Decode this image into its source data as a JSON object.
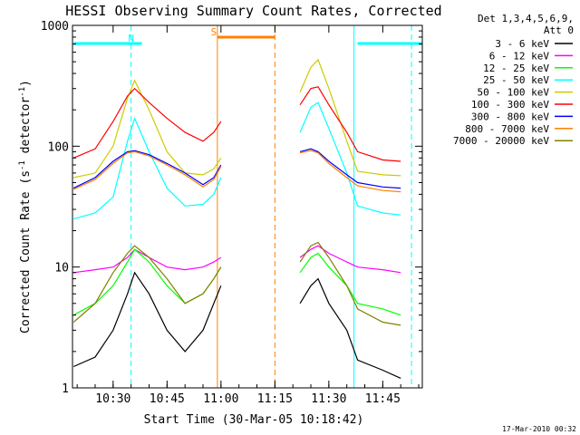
{
  "chart_data": {
    "type": "line",
    "title": "HESSI Observing Summary Count Rates, Corrected",
    "xlabel": "Start Time (30-Mar-05 10:18:42)",
    "ylabel": "Corrected Count Rate (s",
    "ylabel_sup1": "-1",
    "ylabel_mid": " detector",
    "ylabel_sup2": "-1",
    "ylabel_end": ")",
    "yscale": "log",
    "ylim": [
      1,
      1000
    ],
    "xlim": [
      "10:18:42",
      "11:56:00"
    ],
    "x_ticks": [
      "10:30",
      "10:45",
      "11:00",
      "11:15",
      "11:30",
      "11:45"
    ],
    "y_ticks": [
      "1",
      "10",
      "100",
      "1000"
    ],
    "legend_header": [
      "Det 1,3,4,5,6,9,",
      "Att 0"
    ],
    "legend_placement": "right",
    "footer_date": "17-Mar-2010 00:32",
    "series": [
      {
        "name": "3 - 6 keV",
        "color": "#000000",
        "x": [
          "10:19",
          "10:25",
          "10:30",
          "10:34",
          "10:36",
          "10:40",
          "10:45",
          "10:50",
          "10:55",
          "10:58",
          "11:00",
          "11:22",
          "11:25",
          "11:27",
          "11:30",
          "11:35",
          "11:38",
          "11:45",
          "11:50"
        ],
        "values": [
          1.5,
          1.8,
          3,
          6,
          9,
          6,
          3,
          2,
          3,
          5,
          7,
          5,
          7,
          8,
          5,
          3,
          1.7,
          1.4,
          1.2
        ]
      },
      {
        "name": "6 - 12 keV",
        "color": "#ff00ff",
        "x": [
          "10:19",
          "10:25",
          "10:30",
          "10:34",
          "10:36",
          "10:40",
          "10:45",
          "10:50",
          "10:55",
          "10:58",
          "11:00",
          "11:22",
          "11:25",
          "11:27",
          "11:30",
          "11:35",
          "11:38",
          "11:45",
          "11:50"
        ],
        "values": [
          9,
          9.5,
          10,
          12,
          14,
          12,
          10,
          9.5,
          10,
          11,
          12,
          12,
          14,
          15,
          13,
          11,
          10,
          9.5,
          9
        ]
      },
      {
        "name": "12 - 25 keV",
        "color": "#00ff00",
        "x": [
          "10:19",
          "10:25",
          "10:30",
          "10:34",
          "10:36",
          "10:40",
          "10:45",
          "10:50",
          "10:55",
          "10:58",
          "11:00",
          "11:22",
          "11:25",
          "11:27",
          "11:30",
          "11:35",
          "11:38",
          "11:45",
          "11:50"
        ],
        "values": [
          4,
          5,
          7,
          11,
          14,
          11,
          7,
          5,
          6,
          8,
          10,
          9,
          12,
          13,
          10,
          7,
          5,
          4.5,
          4
        ]
      },
      {
        "name": "25 - 50 keV",
        "color": "#00ffff",
        "x": [
          "10:19",
          "10:25",
          "10:30",
          "10:34",
          "10:36",
          "10:40",
          "10:45",
          "10:50",
          "10:55",
          "10:58",
          "11:00",
          "11:22",
          "11:25",
          "11:27",
          "11:30",
          "11:35",
          "11:38",
          "11:45",
          "11:50"
        ],
        "values": [
          25,
          28,
          38,
          110,
          170,
          90,
          45,
          32,
          33,
          40,
          55,
          130,
          210,
          230,
          140,
          60,
          32,
          28,
          27
        ]
      },
      {
        "name": "50 - 100 keV",
        "color": "#cccc00",
        "x": [
          "10:19",
          "10:25",
          "10:30",
          "10:34",
          "10:36",
          "10:40",
          "10:45",
          "10:50",
          "10:55",
          "10:58",
          "11:00",
          "11:22",
          "11:25",
          "11:27",
          "11:30",
          "11:35",
          "11:38",
          "11:45",
          "11:50"
        ],
        "values": [
          55,
          60,
          100,
          250,
          350,
          200,
          90,
          60,
          58,
          65,
          80,
          280,
          450,
          520,
          300,
          110,
          62,
          58,
          57
        ]
      },
      {
        "name": "100 - 300 keV",
        "color": "#ff0000",
        "x": [
          "10:19",
          "10:25",
          "10:30",
          "10:34",
          "10:36",
          "10:40",
          "10:45",
          "10:50",
          "10:55",
          "10:58",
          "11:00",
          "11:22",
          "11:25",
          "11:27",
          "11:30",
          "11:35",
          "11:38",
          "11:45",
          "11:50"
        ],
        "values": [
          80,
          95,
          160,
          260,
          300,
          230,
          170,
          130,
          110,
          130,
          160,
          220,
          300,
          310,
          220,
          130,
          90,
          77,
          75
        ]
      },
      {
        "name": "300 - 800 keV",
        "color": "#0000ff",
        "x": [
          "10:19",
          "10:25",
          "10:30",
          "10:34",
          "10:36",
          "10:40",
          "10:45",
          "10:50",
          "10:55",
          "10:58",
          "11:00",
          "11:22",
          "11:25",
          "11:27",
          "11:30",
          "11:35",
          "11:38",
          "11:45",
          "11:50"
        ],
        "values": [
          45,
          55,
          75,
          90,
          92,
          85,
          72,
          60,
          48,
          55,
          70,
          90,
          95,
          90,
          75,
          58,
          50,
          46,
          45
        ]
      },
      {
        "name": "800 - 7000 keV",
        "color": "#ff8000",
        "x": [
          "10:19",
          "10:25",
          "10:30",
          "10:34",
          "10:36",
          "10:40",
          "10:45",
          "10:50",
          "10:55",
          "10:58",
          "11:00",
          "11:22",
          "11:25",
          "11:27",
          "11:30",
          "11:35",
          "11:38",
          "11:45",
          "11:50"
        ],
        "values": [
          44,
          53,
          72,
          88,
          90,
          83,
          70,
          58,
          46,
          53,
          68,
          88,
          92,
          88,
          72,
          55,
          47,
          43,
          42
        ]
      },
      {
        "name": "7000 - 20000 keV",
        "color": "#808000",
        "x": [
          "10:19",
          "10:25",
          "10:30",
          "10:34",
          "10:36",
          "10:40",
          "10:45",
          "10:50",
          "10:55",
          "10:58",
          "11:00",
          "11:22",
          "11:25",
          "11:27",
          "11:30",
          "11:35",
          "11:38",
          "11:45",
          "11:50"
        ],
        "values": [
          3.5,
          5,
          9,
          13,
          15,
          12,
          8,
          5,
          6,
          8,
          10,
          11,
          15,
          16,
          12,
          7,
          4.5,
          3.5,
          3.3
        ]
      }
    ],
    "annotations": [
      {
        "label": "N",
        "color": "#00ffff",
        "at": "10:35",
        "bar": [
          "10:19",
          "10:38"
        ],
        "bar2": [
          "11:38",
          "11:56"
        ],
        "lines": [
          "10:35",
          "11:37",
          "11:53"
        ]
      },
      {
        "label": "S",
        "color": "#ff8000",
        "at": "10:58",
        "bar": [
          "10:59",
          "11:15"
        ],
        "lines": [
          "10:59",
          "11:15"
        ]
      }
    ]
  }
}
